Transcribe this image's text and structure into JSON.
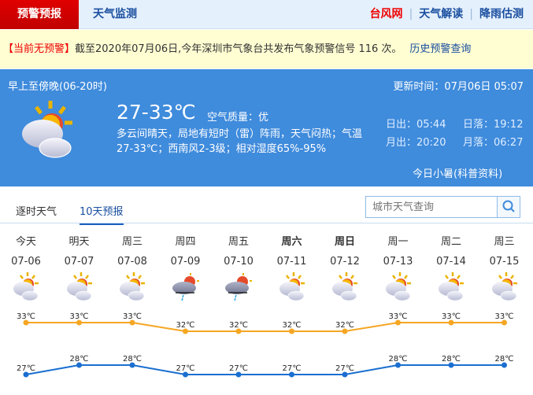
{
  "nav": {
    "active": "预警预报",
    "monitor": "天气监测",
    "links": [
      "台风网",
      "天气解读",
      "降雨估测"
    ]
  },
  "warning": {
    "status": "【当前无预警】",
    "text": "截至2020年07月06日,今年深圳市气象台共发布气象预警信号 116 次。",
    "history_link": "历史预警查询"
  },
  "today": {
    "period": "早上至傍晚(06-20时)",
    "updated": "更新时间：07月06日 05:07",
    "temp": "27-33℃",
    "air_label": "空气质量：",
    "air_value": "优",
    "desc": "多云间晴天，局地有短时（雷）阵雨，天气闷热；气温27-33℃；西南风2-3级；相对湿度65%-95%",
    "sunrise": "日出：05:44",
    "sunset": "日落：19:12",
    "moonrise": "月出：20:20",
    "moonset": "月落：06:27",
    "solar_term": "今日小暑(科普资料)",
    "icon": "partly-cloudy-icon"
  },
  "tabs": [
    "逐时天气",
    "10天预报"
  ],
  "active_tab": 1,
  "search": {
    "placeholder": "城市天气查询"
  },
  "days": [
    {
      "name": "今天",
      "date": "07-06",
      "icon": "partly-cloudy",
      "high": "33℃",
      "low": "27℃"
    },
    {
      "name": "明天",
      "date": "07-07",
      "icon": "partly-cloudy",
      "high": "33℃",
      "low": "28℃"
    },
    {
      "name": "周三",
      "date": "07-08",
      "icon": "partly-cloudy",
      "high": "33℃",
      "low": "28℃"
    },
    {
      "name": "周四",
      "date": "07-09",
      "icon": "thunder-shower",
      "high": "32℃",
      "low": "27℃"
    },
    {
      "name": "周五",
      "date": "07-10",
      "icon": "thunder-shower",
      "high": "32℃",
      "low": "27℃"
    },
    {
      "name": "周六",
      "date": "07-11",
      "icon": "partly-cloudy",
      "high": "32℃",
      "low": "27℃",
      "bold": true
    },
    {
      "name": "周日",
      "date": "07-12",
      "icon": "partly-cloudy",
      "high": "32℃",
      "low": "27℃",
      "bold": true
    },
    {
      "name": "周一",
      "date": "07-13",
      "icon": "partly-cloudy",
      "high": "33℃",
      "low": "28℃"
    },
    {
      "name": "周二",
      "date": "07-14",
      "icon": "partly-cloudy",
      "high": "33℃",
      "low": "28℃"
    },
    {
      "name": "周三",
      "date": "07-15",
      "icon": "partly-cloudy",
      "high": "33℃",
      "low": "28℃"
    }
  ],
  "chart_data": {
    "type": "line",
    "categories": [
      "07-06",
      "07-07",
      "07-08",
      "07-09",
      "07-10",
      "07-11",
      "07-12",
      "07-13",
      "07-14",
      "07-15"
    ],
    "series": [
      {
        "values": [
          33,
          33,
          33,
          32,
          32,
          32,
          32,
          33,
          33,
          33
        ],
        "color": "#f5a623"
      },
      {
        "values": [
          27,
          28,
          28,
          27,
          27,
          27,
          27,
          28,
          28,
          28
        ],
        "color": "#1a6fd0"
      }
    ],
    "unit": "℃"
  },
  "colors": {
    "accent": "#3f8bdc",
    "alert": "#e00000",
    "link": "#1a4fa0"
  }
}
